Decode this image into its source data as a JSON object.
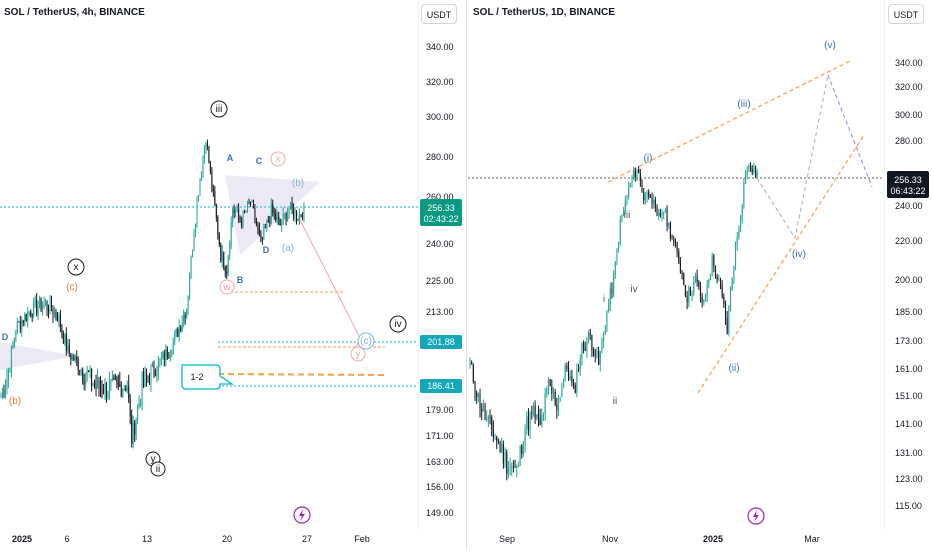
{
  "chart_data": [
    {
      "type": "candlestick",
      "title": "SOL / TetherUS, 4h, BINANCE",
      "currency": "USDT",
      "y_ticks": [
        340,
        320,
        300,
        280,
        260,
        240,
        225,
        213,
        201.88,
        189,
        186.41,
        179,
        171,
        163,
        156,
        149
      ],
      "y_tick_labels": [
        "340.00",
        "320.00",
        "300.00",
        "280.00",
        "260.00",
        "240.00",
        "225.00",
        "213.00",
        "",
        "",
        "",
        "179.00",
        "171.00",
        "163.00",
        "156.00",
        "149.00"
      ],
      "x_tick_labels": [
        "2025",
        "6",
        "13",
        "20",
        "27",
        "Feb"
      ],
      "price_label": {
        "value": "256.33",
        "countdown": "02:43:22"
      },
      "level_labels": [
        {
          "value": "201.88",
          "price": 201.88
        },
        {
          "value": "186.41",
          "price": 186.41
        }
      ],
      "wave_labels": [
        "iii",
        "A",
        "C",
        "x",
        "(b)",
        "(a)",
        "D",
        "B",
        "w",
        "x",
        "(c)",
        "D",
        "(b)",
        "(c)",
        "iv",
        "y",
        "y",
        "ii",
        "1-2"
      ],
      "colors": {
        "up": "#26a69a",
        "down": "#131722",
        "accent": "#00bcd4",
        "orange": "#f7a245",
        "pink": "#f4a6a6",
        "blue": "#3d6fb6",
        "zone": "#e9e2f3"
      }
    },
    {
      "type": "candlestick",
      "title": "SOL / TetherUS, 1D, BINANCE",
      "currency": "USDT",
      "y_ticks": [
        340,
        320,
        300,
        280,
        260,
        240,
        220,
        200,
        185,
        173,
        161,
        151,
        141,
        131,
        123,
        115
      ],
      "y_tick_labels": [
        "340.00",
        "320.00",
        "300.00",
        "280.00",
        "",
        "240.00",
        "220.00",
        "200.00",
        "185.00",
        "173.00",
        "161.00",
        "151.00",
        "141.00",
        "131.00",
        "123.00",
        "115.00"
      ],
      "x_tick_labels": [
        "Sep",
        "Nov",
        "2025",
        "Mar"
      ],
      "price_label": {
        "value": "256.33",
        "countdown": "06:43:22"
      },
      "wave_labels": [
        "(v)",
        "(iii)",
        "(i)",
        "iii",
        "i",
        "iv",
        "ii",
        "(iv)",
        "(ii)"
      ],
      "colors": {
        "up": "#26a69a",
        "down": "#131722",
        "orange": "#f7a245",
        "blue": "#3d6fb6",
        "grey": "#555555",
        "purple": "#9c7bd6"
      }
    }
  ]
}
